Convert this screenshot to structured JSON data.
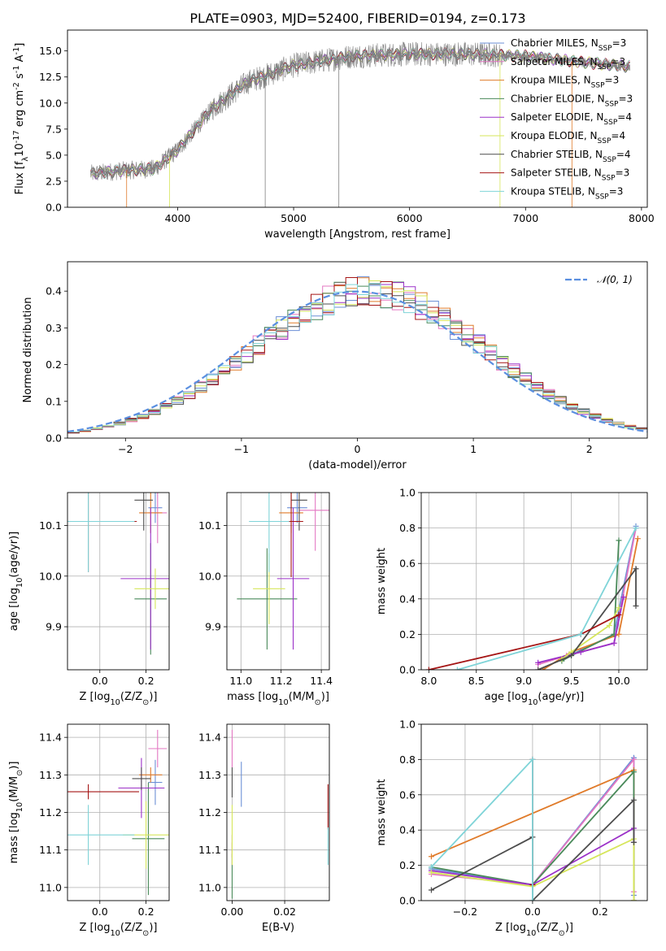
{
  "title": "PLATE=0903, MJD=52400, FIBERID=0194, z=0.173",
  "models": [
    {
      "name": "Chabrier MILES, N$_{SSP}$=3",
      "label": "Chabrier MILES, N",
      "sub": "SSP",
      "tail": "=3",
      "color": "#6b8fd6"
    },
    {
      "name": "Salpeter MILES, N$_{SSP}$=3",
      "label": "Salpeter MILES, N",
      "sub": "SSP",
      "tail": "=3",
      "color": "#e377c2"
    },
    {
      "name": "Kroupa MILES, N$_{SSP}$=3",
      "label": "Kroupa MILES, N",
      "sub": "SSP",
      "tail": "=3",
      "color": "#e07b2a"
    },
    {
      "name": "Chabrier ELODIE, N$_{SSP}$=3",
      "label": "Chabrier ELODIE, N",
      "sub": "SSP",
      "tail": "=3",
      "color": "#4a8a5a"
    },
    {
      "name": "Salpeter ELODIE, N$_{SSP}$=4",
      "label": "Salpeter ELODIE, N",
      "sub": "SSP",
      "tail": "=4",
      "color": "#9b30c8"
    },
    {
      "name": "Kroupa ELODIE, N$_{SSP}$=4",
      "label": "Kroupa ELODIE, N",
      "sub": "SSP",
      "tail": "=4",
      "color": "#d6e65a"
    },
    {
      "name": "Chabrier STELIB, N$_{SSP}$=4",
      "label": "Chabrier STELIB, N",
      "sub": "SSP",
      "tail": "=4",
      "color": "#4d4d4d"
    },
    {
      "name": "Salpeter STELIB, N$_{SSP}$=3",
      "label": "Salpeter STELIB, N",
      "sub": "SSP",
      "tail": "=3",
      "color": "#a51515"
    },
    {
      "name": "Kroupa STELIB, N$_{SSP}$=3",
      "label": "Kroupa STELIB, N",
      "sub": "SSP",
      "tail": "=3",
      "color": "#7fd4d8"
    }
  ],
  "chart_data": [
    {
      "type": "line",
      "ylabel": "Flux [f$_\\lambda$10$^{-17}$ erg cm$^{-2}$ s$^{-1}$ A$^{-1}$]",
      "xlabel": "wavelength [Angstrom, rest frame]",
      "xlim": [
        3050,
        8050
      ],
      "ylim": [
        0,
        17
      ],
      "xticks": [
        4000,
        5000,
        6000,
        7000,
        8000
      ],
      "yticks": [
        0.0,
        2.5,
        5.0,
        7.5,
        10.0,
        12.5,
        15.0
      ],
      "continuum": {
        "x": [
          3250,
          3500,
          3800,
          4000,
          4300,
          4600,
          5000,
          5500,
          6000,
          6500,
          7000,
          7500,
          7900
        ],
        "y": [
          3.2,
          3.5,
          3.7,
          5.5,
          9.5,
          12.0,
          13.6,
          14.5,
          14.7,
          14.7,
          14.5,
          13.9,
          13.5
        ]
      },
      "legend": "upper right"
    },
    {
      "type": "line",
      "xlabel": "(data-model)/error",
      "ylabel": "Normed distribution",
      "xlim": [
        -2.5,
        2.5
      ],
      "ylim": [
        0,
        0.48
      ],
      "xticks": [
        -2,
        -1,
        0,
        1,
        2
      ],
      "yticks": [
        0.0,
        0.1,
        0.2,
        0.3,
        0.4
      ],
      "gaussian_label": "𝒩(0, 1)",
      "gaussian_color": "#5a8fe0",
      "hist_bin_width": 0.1
    },
    {
      "type": "scatter",
      "xlabel": "Z [log$_{10}$(Z/Z$_\\odot$)]",
      "ylabel": "age  [log$_{10}$(age/yr)]",
      "xlim": [
        -0.14,
        0.3
      ],
      "ylim": [
        9.815,
        10.165
      ],
      "xticks": [
        0.0,
        0.2
      ],
      "yticks": [
        9.9,
        10.0,
        10.1
      ],
      "points": [
        {
          "x": 0.24,
          "y": 10.135,
          "xerr": 0.03,
          "yerr": 0.03
        },
        {
          "x": 0.25,
          "y": 10.125,
          "xerr": 0.04,
          "yerr": 0.06
        },
        {
          "x": 0.22,
          "y": 10.125,
          "xerr": 0.05,
          "yerr": 0.04
        },
        {
          "x": 0.22,
          "y": 9.955,
          "xerr": 0.07,
          "yerr": 0.11
        },
        {
          "x": 0.22,
          "y": 9.995,
          "xerr": 0.13,
          "yerr": 0.14
        },
        {
          "x": 0.24,
          "y": 9.975,
          "xerr": 0.09,
          "yerr": 0.04
        },
        {
          "x": 0.19,
          "y": 10.15,
          "xerr": 0.04,
          "yerr": 0.06
        },
        {
          "x": -0.05,
          "y": 10.108,
          "xerr": 0.21,
          "yerr": 0.1
        },
        {
          "x": -0.05,
          "y": 10.108,
          "xerr": 0.2,
          "yerr": 0.1
        }
      ]
    },
    {
      "type": "scatter",
      "xlabel": "mass [log$_{10}$(M/M$_\\odot$)]",
      "ylabel": "",
      "xlim": [
        10.93,
        11.44
      ],
      "ylim": [
        9.815,
        10.165
      ],
      "xticks": [
        11.0,
        11.2,
        11.4
      ],
      "yticks": [
        9.9,
        10.0,
        10.1
      ],
      "points": [
        {
          "x": 11.28,
          "y": 10.135,
          "xerr": 0.05,
          "yerr": 0.03
        },
        {
          "x": 11.37,
          "y": 10.13,
          "xerr": 0.08,
          "yerr": 0.08
        },
        {
          "x": 11.25,
          "y": 10.125,
          "xerr": 0.06,
          "yerr": 0.04
        },
        {
          "x": 11.13,
          "y": 9.955,
          "xerr": 0.15,
          "yerr": 0.1
        },
        {
          "x": 11.26,
          "y": 9.995,
          "xerr": 0.08,
          "yerr": 0.14
        },
        {
          "x": 11.14,
          "y": 9.975,
          "xerr": 0.08,
          "yerr": 0.07
        },
        {
          "x": 11.29,
          "y": 10.15,
          "xerr": 0.04,
          "yerr": 0.06
        },
        {
          "x": 11.25,
          "y": 10.108,
          "xerr": 0.06,
          "yerr": 0.11
        },
        {
          "x": 11.14,
          "y": 10.108,
          "xerr": 0.1,
          "yerr": 0.1
        }
      ]
    },
    {
      "type": "line",
      "xlabel": "age  [log$_{10}$(age/yr)]",
      "ylabel": "mass weight",
      "xlim": [
        7.92,
        10.3
      ],
      "ylim": [
        0,
        1.0
      ],
      "xticks": [
        8.0,
        8.5,
        9.0,
        9.5,
        10.0
      ],
      "yticks": [
        0.0,
        0.2,
        0.4,
        0.6,
        0.8,
        1.0
      ],
      "series": [
        {
          "x": [
            9.4,
            9.95,
            10.18
          ],
          "y": [
            0.06,
            0.2,
            0.81
          ]
        },
        {
          "x": [
            9.15,
            9.45,
            9.95,
            10.18
          ],
          "y": [
            0.03,
            0.08,
            0.15,
            0.8
          ]
        },
        {
          "x": [
            9.2,
            9.5,
            10.0,
            10.2
          ],
          "y": [
            0.0,
            0.1,
            0.2,
            0.74
          ]
        },
        {
          "x": [
            9.4,
            9.5,
            9.95,
            10.0
          ],
          "y": [
            0.05,
            0.08,
            0.2,
            0.73
          ]
        },
        {
          "x": [
            9.15,
            9.6,
            9.95,
            10.05
          ],
          "y": [
            0.04,
            0.1,
            0.15,
            0.41
          ]
        },
        {
          "x": [
            9.4,
            9.5,
            9.9,
            10.0
          ],
          "y": [
            0.06,
            0.1,
            0.25,
            0.35
          ]
        },
        {
          "x": [
            9.15,
            9.5,
            10.18,
            10.18
          ],
          "y": [
            0.0,
            0.08,
            0.57,
            0.36
          ]
        },
        {
          "x": [
            8.0,
            9.6,
            10.0
          ],
          "y": [
            0.0,
            0.2,
            0.31
          ]
        },
        {
          "x": [
            8.3,
            9.6,
            10.18
          ],
          "y": [
            0.0,
            0.2,
            0.8
          ]
        }
      ]
    },
    {
      "type": "scatter",
      "xlabel": "Z [log$_{10}$(Z/Z$_\\odot$)]",
      "ylabel": "mass [log$_{10}$(M/M$_\\odot$)]",
      "xlim": [
        -0.14,
        0.3
      ],
      "ylim": [
        10.965,
        11.435
      ],
      "xticks": [
        0.0,
        0.2
      ],
      "yticks": [
        11.0,
        11.1,
        11.2,
        11.3,
        11.4
      ],
      "points": [
        {
          "x": 0.24,
          "y": 11.28,
          "xerr": 0.03,
          "yerr": 0.06
        },
        {
          "x": 0.25,
          "y": 11.37,
          "xerr": 0.04,
          "yerr": 0.05
        },
        {
          "x": 0.22,
          "y": 11.3,
          "xerr": 0.05,
          "yerr": 0.02
        },
        {
          "x": 0.21,
          "y": 11.13,
          "xerr": 0.07,
          "yerr": 0.15
        },
        {
          "x": 0.18,
          "y": 11.265,
          "xerr": 0.1,
          "yerr": 0.08
        },
        {
          "x": 0.2,
          "y": 11.14,
          "xerr": 0.1,
          "yerr": 0.09
        },
        {
          "x": 0.18,
          "y": 11.29,
          "xerr": 0.04,
          "yerr": 0.03
        },
        {
          "x": -0.05,
          "y": 11.255,
          "xerr": 0.22,
          "yerr": 0.02
        },
        {
          "x": -0.05,
          "y": 11.14,
          "xerr": 0.2,
          "yerr": 0.08
        }
      ]
    },
    {
      "type": "scatter",
      "xlabel": "E(B-V)",
      "ylabel": "",
      "xlim": [
        -0.002,
        0.037
      ],
      "ylim": [
        10.965,
        11.435
      ],
      "xticks": [
        0.0,
        0.02
      ],
      "yticks": [
        11.0,
        11.1,
        11.2,
        11.3,
        11.4
      ],
      "points": [
        {
          "x": 0.0035,
          "y": 11.275,
          "xerr": 0,
          "yerr": 0.06
        },
        {
          "x": 0.0,
          "y": 11.37,
          "xerr": 0,
          "yerr": 0.05
        },
        {
          "x": 0.0,
          "y": 11.1,
          "xerr": 0,
          "yerr": 0.02
        },
        {
          "x": 0.0,
          "y": 11.03,
          "xerr": 0,
          "yerr": 0.06
        },
        {
          "x": 0.0,
          "y": 11.1,
          "xerr": 0,
          "yerr": 0.04
        },
        {
          "x": 0.0,
          "y": 11.14,
          "xerr": 0,
          "yerr": 0.08
        },
        {
          "x": 0.0,
          "y": 11.28,
          "xerr": 0,
          "yerr": 0.04
        },
        {
          "x": 0.0365,
          "y": 11.215,
          "xerr": 0,
          "yerr": 0.06
        },
        {
          "x": 0.0365,
          "y": 11.11,
          "xerr": 0,
          "yerr": 0.05
        }
      ]
    },
    {
      "type": "line",
      "xlabel": "Z [log$_{10}$(Z/Z$_\\odot$)]",
      "ylabel": "mass weight",
      "xlim": [
        -0.33,
        0.34
      ],
      "ylim": [
        0,
        1.0
      ],
      "xticks": [
        -0.2,
        0.0,
        0.2
      ],
      "yticks": [
        0.0,
        0.2,
        0.4,
        0.6,
        0.8,
        1.0
      ],
      "series": [
        {
          "x": [
            -0.3,
            0.0,
            0.3,
            0.3
          ],
          "y": [
            0.18,
            0.09,
            0.81,
            0.03
          ]
        },
        {
          "x": [
            -0.3,
            0.0,
            0.3,
            0.3
          ],
          "y": [
            0.15,
            0.09,
            0.8,
            0.05
          ]
        },
        {
          "x": [
            -0.3,
            0.3,
            0.3
          ],
          "y": [
            0.25,
            0.74,
            0.0
          ]
        },
        {
          "x": [
            -0.3,
            0.0,
            0.3,
            0.3
          ],
          "y": [
            0.19,
            0.09,
            0.73,
            0.0
          ]
        },
        {
          "x": [
            -0.3,
            0.0,
            0.3,
            0.3
          ],
          "y": [
            0.17,
            0.09,
            0.41,
            0.33
          ]
        },
        {
          "x": [
            -0.3,
            0.0,
            0.3,
            0.3
          ],
          "y": [
            0.16,
            0.08,
            0.35,
            0.0
          ]
        },
        {
          "x": [
            -0.3,
            0.0,
            0.0,
            0.3,
            0.3
          ],
          "y": [
            0.06,
            0.36,
            0.0,
            0.57,
            0.33
          ]
        },
        {
          "x": [
            0.0,
            0.0
          ],
          "y": [
            0.8,
            0.09
          ]
        },
        {
          "x": [
            -0.3,
            0.0,
            0.0
          ],
          "y": [
            0.19,
            0.8,
            0.0
          ]
        }
      ]
    }
  ]
}
